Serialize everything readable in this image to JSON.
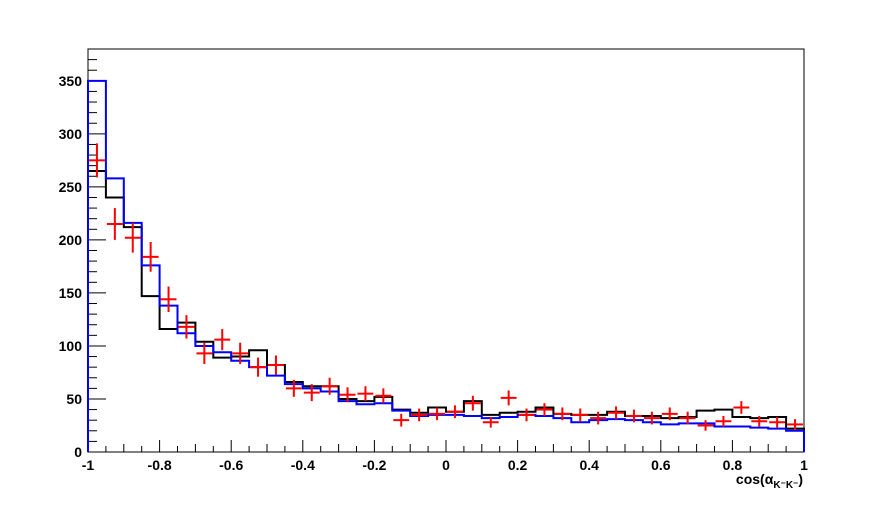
{
  "chart_data": {
    "type": "line",
    "xlabel": "cos(α",
    "xlabel_sub": "K⁻K⁻",
    "xlabel_close": ")",
    "xlim": [
      -1,
      1
    ],
    "ylim": [
      0,
      380
    ],
    "x_ticks": [
      -1,
      -0.8,
      -0.6,
      -0.4,
      -0.2,
      0,
      0.2,
      0.4,
      0.6,
      0.8,
      1
    ],
    "y_ticks": [
      0,
      50,
      100,
      150,
      200,
      250,
      300,
      350
    ],
    "bin_edges": [
      -1,
      -0.95,
      -0.9,
      -0.85,
      -0.8,
      -0.75,
      -0.7,
      -0.65,
      -0.6,
      -0.55,
      -0.5,
      -0.45,
      -0.4,
      -0.35,
      -0.3,
      -0.25,
      -0.2,
      -0.15,
      -0.1,
      -0.05,
      0,
      0.05,
      0.1,
      0.15,
      0.2,
      0.25,
      0.3,
      0.35,
      0.4,
      0.45,
      0.5,
      0.55,
      0.6,
      0.65,
      0.7,
      0.75,
      0.8,
      0.85,
      0.9,
      0.95,
      1
    ],
    "series": [
      {
        "style": "histogram",
        "color": "#000000",
        "values": [
          265,
          240,
          212,
          147,
          116,
          122,
          104,
          89,
          90,
          96,
          82,
          66,
          62,
          62,
          50,
          48,
          52,
          40,
          37,
          42,
          38,
          48,
          35,
          37,
          38,
          42,
          36,
          35,
          35,
          38,
          34,
          34,
          32,
          33,
          39,
          40,
          33,
          32,
          33,
          22
        ]
      },
      {
        "style": "histogram",
        "color": "#0000ff",
        "values": [
          350,
          258,
          216,
          176,
          138,
          112,
          100,
          94,
          86,
          80,
          72,
          64,
          60,
          57,
          48,
          45,
          46,
          39,
          34,
          35,
          35,
          34,
          32,
          33,
          35,
          34,
          32,
          28,
          30,
          31,
          30,
          28,
          26,
          27,
          27,
          24,
          24,
          23,
          22,
          20
        ]
      },
      {
        "style": "error-points",
        "color": "#ff0000",
        "values": [
          275,
          215,
          202,
          184,
          144,
          118,
          93,
          106,
          93,
          80,
          82,
          60,
          56,
          62,
          54,
          55,
          53,
          30,
          35,
          36,
          38,
          46,
          28,
          51,
          35,
          40,
          36,
          35,
          32,
          37,
          34,
          32,
          36,
          32,
          25,
          29,
          42,
          29,
          28,
          26
        ],
        "errors": [
          16,
          15,
          14,
          14,
          12,
          11,
          10,
          10,
          10,
          9,
          9,
          8,
          8,
          8,
          7,
          7,
          7,
          6,
          6,
          6,
          6,
          7,
          5,
          7,
          6,
          6,
          6,
          6,
          6,
          6,
          6,
          6,
          6,
          6,
          5,
          5,
          6,
          5,
          5,
          5
        ]
      }
    ],
    "grid": false,
    "legend": "none"
  }
}
